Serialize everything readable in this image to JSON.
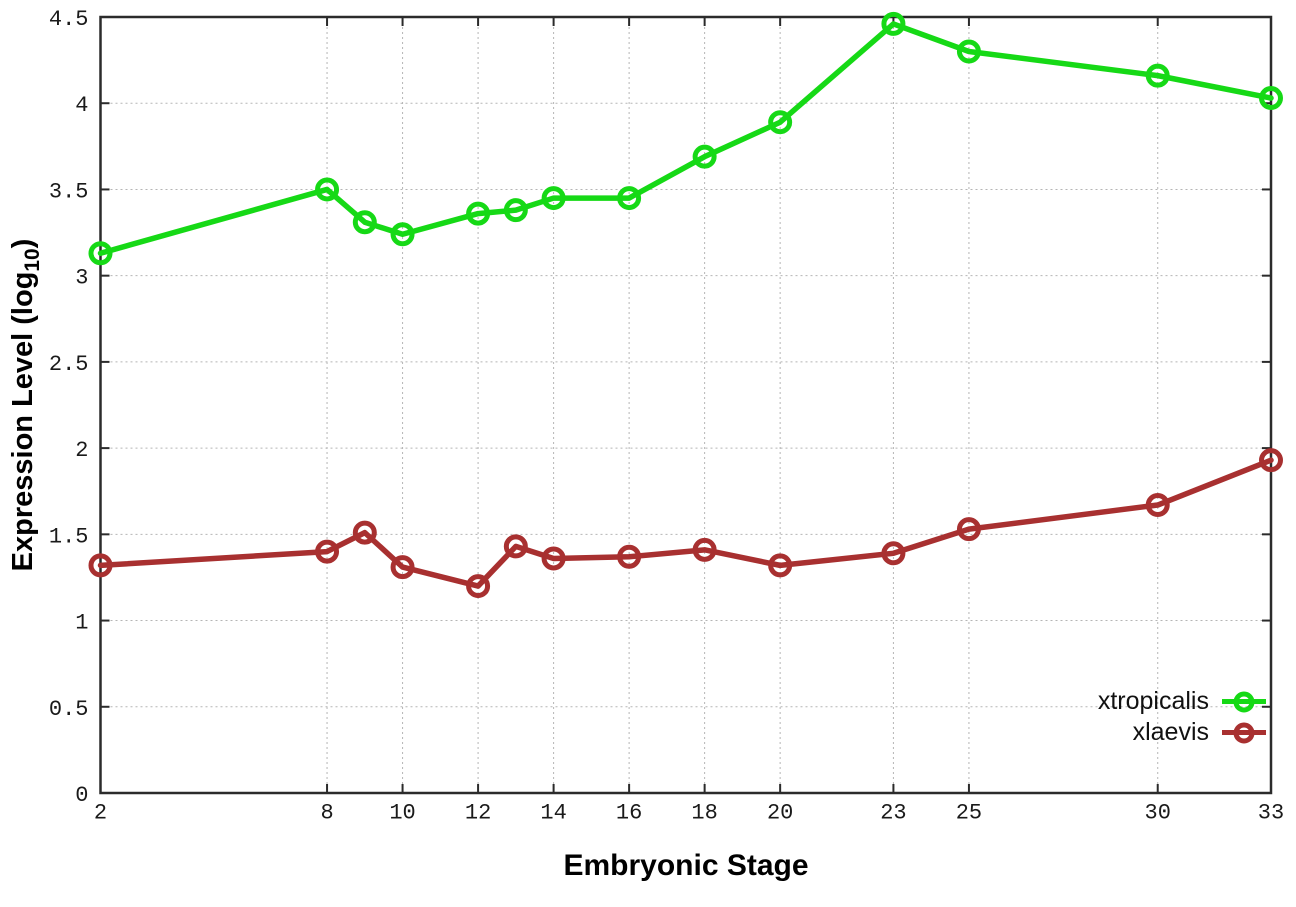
{
  "chart_data": {
    "type": "line",
    "title": "",
    "xlabel": "Embryonic Stage",
    "ylabel": {
      "prefix": "Expression Level (log",
      "sub": "10",
      "suffix": ")"
    },
    "x": [
      2,
      8,
      9,
      10,
      12,
      13,
      14,
      16,
      18,
      20,
      23,
      25,
      30,
      33
    ],
    "xlim": [
      2,
      33
    ],
    "ylim": [
      0,
      4.5
    ],
    "xticks": [
      2,
      8,
      10,
      12,
      14,
      16,
      18,
      20,
      23,
      25,
      30,
      33
    ],
    "yticks": [
      0,
      0.5,
      1,
      1.5,
      2,
      2.5,
      3,
      3.5,
      4,
      4.5
    ],
    "grid": true,
    "legend_position": "bottom-right",
    "marker": "open-circle",
    "series": [
      {
        "name": "xtropicalis",
        "color": "#16d916",
        "values": [
          3.13,
          3.5,
          3.31,
          3.24,
          3.36,
          3.38,
          3.45,
          3.45,
          3.69,
          3.89,
          4.46,
          4.3,
          4.16,
          4.03
        ]
      },
      {
        "name": "xlaevis",
        "color": "#a83030",
        "values": [
          1.32,
          1.4,
          1.51,
          1.31,
          1.2,
          1.43,
          1.36,
          1.37,
          1.41,
          1.32,
          1.39,
          1.53,
          1.67,
          1.93
        ]
      }
    ]
  }
}
